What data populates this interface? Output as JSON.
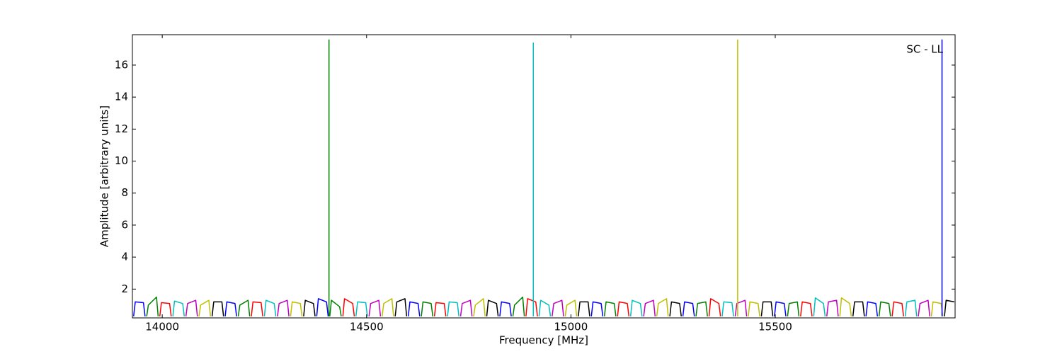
{
  "chart_data": {
    "type": "line",
    "xlabel": "Frequency [MHz]",
    "ylabel": "Amplitude [arbitrary units]",
    "annotation": "SC - LL",
    "xlim": [
      13927,
      15940
    ],
    "ylim": [
      0.2,
      17.9
    ],
    "xticks": [
      14000,
      14500,
      15000,
      15500
    ],
    "yticks": [
      2,
      4,
      6,
      8,
      10,
      12,
      14,
      16
    ],
    "grid": false,
    "series": [
      {
        "color": "#0000ff",
        "x": [
          13930,
          13934,
          13954,
          13958,
          13959,
          14154,
          14158,
          14178,
          14182,
          14183,
          14378,
          14382,
          14402,
          14406,
          14407,
          14602,
          14606,
          14626,
          14630,
          14631,
          14826,
          14830,
          14850,
          14854,
          14855,
          15050,
          15054,
          15074,
          15078,
          15079,
          15274,
          15278,
          15298,
          15302,
          15303,
          15498,
          15502,
          15522,
          15526,
          15527,
          15722,
          15726,
          15746,
          15750
        ],
        "values": [
          0.3,
          1.2,
          1.15,
          0.3,
          null,
          0.3,
          1.2,
          1.1,
          0.3,
          null,
          0.3,
          1.4,
          1.2,
          0.3,
          null,
          0.3,
          1.2,
          1.1,
          0.3,
          null,
          0.3,
          1.2,
          1.1,
          0.3,
          null,
          0.3,
          1.2,
          1.1,
          0.3,
          null,
          0.3,
          1.2,
          1.1,
          0.3,
          null,
          0.3,
          1.2,
          1.1,
          0.3,
          null,
          0.3,
          1.2,
          1.1,
          0.3
        ]
      },
      {
        "color": "#008000",
        "x": [
          13962,
          13966,
          13986,
          13990,
          13991,
          14186,
          14190,
          14210,
          14214,
          14215,
          14410,
          14414,
          14434,
          14438,
          14439,
          14634,
          14638,
          14658,
          14662,
          14663,
          14858,
          14862,
          14882,
          14886,
          14887,
          15082,
          15086,
          15106,
          15110,
          15111,
          15306,
          15310,
          15330,
          15334,
          15335,
          15530,
          15534,
          15554,
          15558,
          15559,
          15754,
          15758,
          15778,
          15782
        ],
        "values": [
          0.3,
          1.0,
          1.5,
          0.3,
          null,
          0.3,
          1.0,
          1.3,
          0.3,
          null,
          0.3,
          1.3,
          0.9,
          0.3,
          null,
          0.3,
          1.2,
          1.1,
          0.3,
          null,
          0.3,
          1.0,
          1.5,
          0.3,
          null,
          0.3,
          1.2,
          1.1,
          0.3,
          null,
          0.3,
          1.1,
          1.2,
          0.3,
          null,
          0.3,
          1.1,
          1.2,
          0.3,
          null,
          0.3,
          1.2,
          1.1,
          0.3
        ]
      },
      {
        "color": "#ff0000",
        "x": [
          13994,
          13998,
          14018,
          14022,
          14023,
          14218,
          14222,
          14242,
          14246,
          14247,
          14442,
          14446,
          14466,
          14470,
          14471,
          14666,
          14670,
          14690,
          14694,
          14695,
          14890,
          14894,
          14914,
          14918,
          14919,
          15114,
          15118,
          15138,
          15142,
          15143,
          15338,
          15342,
          15362,
          15366,
          15367,
          15562,
          15566,
          15586,
          15590,
          15591,
          15786,
          15790,
          15810,
          15814
        ],
        "values": [
          0.3,
          1.15,
          1.1,
          0.3,
          null,
          0.3,
          1.2,
          1.15,
          0.3,
          null,
          0.3,
          1.4,
          1.1,
          0.3,
          null,
          0.3,
          1.15,
          1.1,
          0.3,
          null,
          0.3,
          1.4,
          1.2,
          0.3,
          null,
          0.3,
          1.2,
          1.1,
          0.3,
          null,
          0.3,
          1.4,
          1.1,
          0.3,
          null,
          0.3,
          1.2,
          1.1,
          0.3,
          null,
          0.3,
          1.2,
          1.1,
          0.3
        ]
      },
      {
        "color": "#00bfbf",
        "x": [
          14026,
          14030,
          14050,
          14054,
          14055,
          14250,
          14254,
          14274,
          14278,
          14279,
          14474,
          14478,
          14498,
          14502,
          14503,
          14698,
          14702,
          14722,
          14726,
          14727,
          14922,
          14926,
          14946,
          14950,
          14951,
          15146,
          15150,
          15170,
          15174,
          15175,
          15370,
          15374,
          15394,
          15398,
          15399,
          15594,
          15598,
          15618,
          15622,
          15623,
          15818,
          15822,
          15842,
          15846
        ],
        "values": [
          0.3,
          1.25,
          1.1,
          0.3,
          null,
          0.3,
          1.3,
          1.1,
          0.3,
          null,
          0.3,
          1.2,
          1.15,
          0.3,
          null,
          0.3,
          1.2,
          1.15,
          0.3,
          null,
          0.3,
          1.3,
          1.0,
          0.3,
          null,
          0.3,
          1.3,
          1.1,
          0.3,
          null,
          0.3,
          1.2,
          1.15,
          0.3,
          null,
          0.3,
          1.45,
          1.1,
          0.3,
          null,
          0.3,
          1.2,
          1.3,
          0.3
        ]
      },
      {
        "color": "#bf00bf",
        "x": [
          14058,
          14062,
          14082,
          14086,
          14087,
          14282,
          14286,
          14306,
          14310,
          14311,
          14506,
          14510,
          14530,
          14534,
          14535,
          14730,
          14734,
          14754,
          14758,
          14759,
          14954,
          14958,
          14978,
          14982,
          14983,
          15178,
          15182,
          15202,
          15206,
          15207,
          15402,
          15406,
          15426,
          15430,
          15431,
          15626,
          15630,
          15650,
          15654,
          15655,
          15850,
          15854,
          15874,
          15878
        ],
        "values": [
          0.3,
          1.1,
          1.3,
          0.3,
          null,
          0.3,
          1.1,
          1.3,
          0.3,
          null,
          0.3,
          1.1,
          1.3,
          0.3,
          null,
          0.3,
          1.1,
          1.3,
          0.3,
          null,
          0.3,
          1.1,
          1.3,
          0.3,
          null,
          0.3,
          1.1,
          1.3,
          0.3,
          null,
          0.3,
          1.1,
          1.3,
          0.3,
          null,
          0.3,
          1.2,
          1.3,
          0.3,
          null,
          0.3,
          1.1,
          1.3,
          0.3
        ]
      },
      {
        "color": "#bfbf00",
        "x": [
          14090,
          14094,
          14114,
          14118,
          14119,
          14314,
          14318,
          14338,
          14342,
          14343,
          14538,
          14542,
          14562,
          14566,
          14567,
          14762,
          14766,
          14786,
          14790,
          14791,
          14986,
          14990,
          15010,
          15014,
          15015,
          15210,
          15214,
          15234,
          15238,
          15239,
          15434,
          15438,
          15458,
          15462,
          15463,
          15658,
          15662,
          15682,
          15686,
          15687,
          15882,
          15886,
          15906,
          15910
        ],
        "values": [
          0.3,
          1.0,
          1.3,
          0.3,
          null,
          0.3,
          1.2,
          1.1,
          0.3,
          null,
          0.3,
          1.1,
          1.4,
          0.3,
          null,
          0.3,
          1.0,
          1.4,
          0.3,
          null,
          0.3,
          1.0,
          1.3,
          0.3,
          null,
          0.3,
          1.1,
          1.4,
          0.3,
          null,
          0.3,
          1.2,
          1.1,
          0.3,
          null,
          0.3,
          1.45,
          1.1,
          0.3,
          null,
          0.3,
          1.2,
          1.1,
          0.3
        ]
      },
      {
        "color": "#000000",
        "x": [
          14122,
          14126,
          14146,
          14150,
          14151,
          14346,
          14350,
          14370,
          14374,
          14375,
          14570,
          14574,
          14594,
          14598,
          14599,
          14794,
          14798,
          14818,
          14822,
          14823,
          15018,
          15022,
          15042,
          15046,
          15047,
          15242,
          15246,
          15266,
          15270,
          15271,
          15466,
          15470,
          15490,
          15494,
          15495,
          15690,
          15694,
          15714,
          15718,
          15719,
          15914,
          15918,
          15938
        ],
        "values": [
          0.3,
          1.2,
          1.2,
          0.3,
          null,
          0.3,
          1.3,
          1.1,
          0.3,
          null,
          0.3,
          1.2,
          1.4,
          0.3,
          null,
          0.3,
          1.3,
          1.1,
          0.3,
          null,
          0.3,
          1.2,
          1.2,
          0.3,
          null,
          0.3,
          1.2,
          1.1,
          0.3,
          null,
          0.3,
          1.2,
          1.2,
          0.3,
          null,
          0.3,
          1.2,
          1.2,
          0.3,
          null,
          0.3,
          1.3,
          1.2
        ]
      },
      {
        "color": "#008000",
        "x": [
          14408,
          14408
        ],
        "values": [
          0.3,
          17.6
        ]
      },
      {
        "color": "#00bfbf",
        "x": [
          14908,
          14908
        ],
        "values": [
          0.3,
          17.4
        ]
      },
      {
        "color": "#bfbf00",
        "x": [
          15408,
          15408
        ],
        "values": [
          0.3,
          17.6
        ]
      },
      {
        "color": "#0000ff",
        "x": [
          15908,
          15908
        ],
        "values": [
          0.3,
          17.6
        ]
      }
    ]
  }
}
